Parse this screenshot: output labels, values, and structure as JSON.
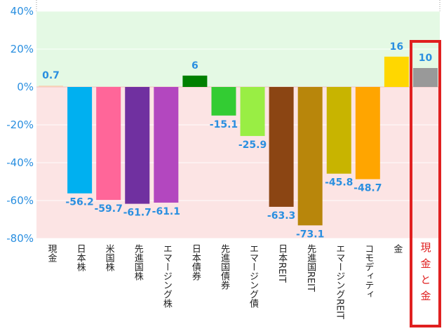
{
  "chart_data": {
    "type": "bar",
    "title": "",
    "xlabel": "",
    "ylabel": "",
    "ylim": [
      -80,
      40
    ],
    "yticks": [
      40,
      20,
      0,
      -20,
      -40,
      -60,
      -80
    ],
    "ytick_labels": [
      "40%",
      "20%",
      "0%",
      "-20%",
      "-40%",
      "-60%",
      "-80%"
    ],
    "categories": [
      "現金",
      "日本株",
      "米国株",
      "先進国株",
      "エマージング株",
      "日本債券",
      "先進国債券",
      "エマージング債",
      "日本REIT",
      "先進国REIT",
      "エマージングREIT",
      "コモディティ",
      "金",
      "現金と金"
    ],
    "values": [
      0.7,
      -56.2,
      -59.7,
      -61.7,
      -61.1,
      6,
      -15.1,
      -25.9,
      -63.3,
      -73.1,
      -45.8,
      -48.7,
      16,
      10
    ],
    "value_labels": [
      "0.7",
      "-56.2",
      "-59.7",
      "-61.7",
      "-61.1",
      "6",
      "-15.1",
      "-25.9",
      "-63.3",
      "-73.1",
      "-45.8",
      "-48.7",
      "16",
      "10"
    ],
    "colors": [
      "#f7d2b8",
      "#00b0f0",
      "#ff6699",
      "#7030a0",
      "#b347bf",
      "#008000",
      "#33cc33",
      "#99ee44",
      "#8b4513",
      "#b8860b",
      "#c8b400",
      "#ffa500",
      "#ffd700",
      "#999999"
    ],
    "highlight_category": "現金と金",
    "positive_band_color": "#e4f9e4",
    "negative_band_color": "#fce4e4",
    "highlight_color": "#e02020"
  }
}
